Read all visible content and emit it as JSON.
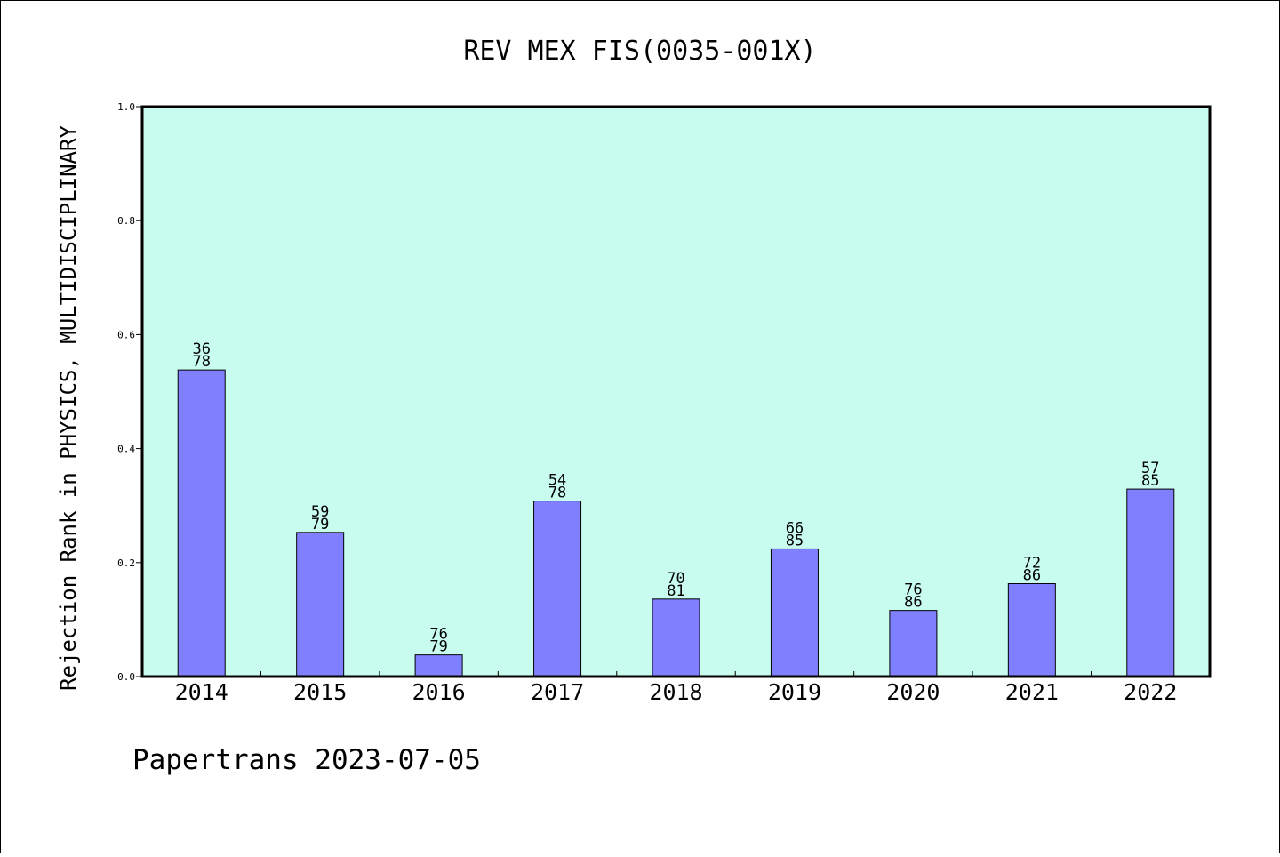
{
  "chart_data": {
    "type": "bar",
    "title": "REV MEX FIS(0035-001X)",
    "ylabel": "Rejection Rank in PHYSICS, MULTIDISCIPLINARY",
    "xlabel": "",
    "ylim": [
      0,
      1.0
    ],
    "yticks": [
      "0.0",
      "0.2",
      "0.4",
      "0.6",
      "0.8",
      "1.0"
    ],
    "yticks_values": [
      0,
      0.2,
      0.4,
      0.6,
      0.8,
      1.0
    ],
    "categories": [
      "2014",
      "2015",
      "2016",
      "2017",
      "2018",
      "2019",
      "2020",
      "2021",
      "2022"
    ],
    "values": [
      0.538,
      0.253,
      0.038,
      0.308,
      0.136,
      0.224,
      0.116,
      0.163,
      0.329
    ],
    "rank_labels": [
      "36",
      "59",
      "76",
      "54",
      "70",
      "66",
      "76",
      "72",
      "57"
    ],
    "total_labels": [
      "78",
      "79",
      "79",
      "78",
      "81",
      "85",
      "86",
      "86",
      "85"
    ],
    "grid": false,
    "legend": "none",
    "colors": {
      "plot_background": "#c8fcee",
      "bar_fill": "#8080ff",
      "bar_stroke": "#000000"
    }
  },
  "footer": {
    "text": "Papertrans 2023-07-05"
  }
}
